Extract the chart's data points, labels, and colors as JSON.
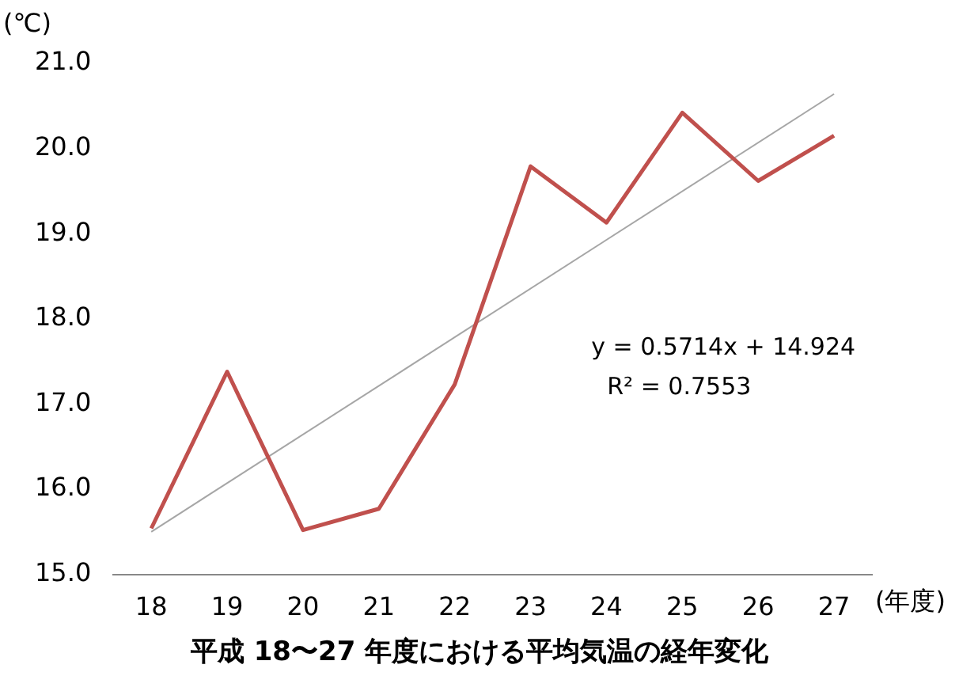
{
  "chart_data": {
    "type": "line",
    "title": "平成 18〜27 年度における平均気温の経年変化",
    "xlabel": "(年度)",
    "ylabel": "(℃)",
    "categories": [
      "18",
      "19",
      "20",
      "21",
      "22",
      "23",
      "24",
      "25",
      "26",
      "27"
    ],
    "series": [
      {
        "color": "#c0504d",
        "values": [
          15.54,
          17.38,
          15.52,
          15.77,
          17.23,
          19.79,
          19.13,
          20.42,
          19.62,
          20.15
        ]
      },
      {
        "color": "#a6a6a6",
        "values": [
          15.5,
          null,
          null,
          null,
          null,
          null,
          null,
          null,
          null,
          20.64
        ]
      }
    ],
    "ylim": [
      15,
      21
    ],
    "yticks": [
      {
        "value": 15,
        "label": "15.0"
      },
      {
        "value": 16,
        "label": "16.0"
      },
      {
        "value": 17,
        "label": "17.0"
      },
      {
        "value": 18,
        "label": "18.0"
      },
      {
        "value": 19,
        "label": "19.0"
      },
      {
        "value": 20,
        "label": "20.0"
      },
      {
        "value": 21,
        "label": "21.0"
      }
    ],
    "grid": false,
    "legend": false,
    "marker": "none",
    "annotations": [
      "y = 0.5714x + 14.924",
      "R² = 0.7553"
    ]
  }
}
